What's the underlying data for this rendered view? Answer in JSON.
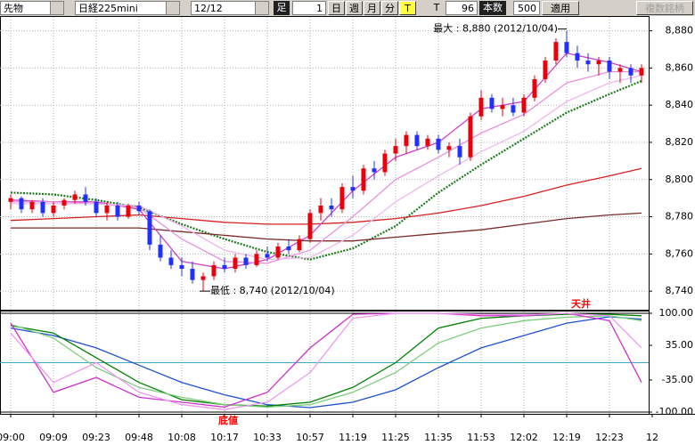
{
  "toolbar": {
    "market": "先物",
    "symbol": "日経225mini",
    "contract": "12/12",
    "bar_label": "足",
    "bar_size": "1",
    "buttons": [
      "日",
      "週",
      "月",
      "分",
      "T"
    ],
    "tick_label": "T",
    "count": "96",
    "count_label": "本数",
    "limit": "500",
    "apply": "適用",
    "multi": "複数銘柄"
  },
  "chart_data": [
    {
      "type": "candlestick",
      "xlim": [
        -1,
        59.67
      ],
      "xticks": [
        {
          "value": 0,
          "label": "09:00"
        },
        {
          "value": 4,
          "label": "09:09"
        },
        {
          "value": 8,
          "label": "09:23"
        },
        {
          "value": 12,
          "label": "09:48"
        },
        {
          "value": 16,
          "label": "10:08"
        },
        {
          "value": 20,
          "label": "10:17"
        },
        {
          "value": 24,
          "label": "10:33"
        },
        {
          "value": 28,
          "label": "10:57"
        },
        {
          "value": 32,
          "label": "11:19"
        },
        {
          "value": 36,
          "label": "11:25"
        },
        {
          "value": 40,
          "label": "11:35"
        },
        {
          "value": 44,
          "label": "11:53"
        },
        {
          "value": 48,
          "label": "12:02"
        },
        {
          "value": 52,
          "label": "12:19"
        },
        {
          "value": 56,
          "label": "12:23"
        },
        {
          "value": 60,
          "label": "12"
        }
      ],
      "ylim": [
        8730,
        8887
      ],
      "yticks": [
        {
          "value": 8880,
          "label": "8,880"
        },
        {
          "value": 8860,
          "label": "8,860"
        },
        {
          "value": 8840,
          "label": "8,840"
        },
        {
          "value": 8820,
          "label": "8,820"
        },
        {
          "value": 8800,
          "label": "8,800"
        },
        {
          "value": 8780,
          "label": "8,780"
        },
        {
          "value": 8760,
          "label": "8,760"
        },
        {
          "value": 8740,
          "label": "8,740"
        }
      ],
      "grid": true,
      "max_label": "最大 : 8,880 (2012/10/04)",
      "min_label": "最低 : 8,740 (2012/10/04)",
      "candles": {
        "up_color": "#e8000b",
        "down_color": "#2030ff",
        "x": [
          0,
          1,
          2,
          3,
          4,
          5,
          6,
          7,
          8,
          9,
          10,
          11,
          12,
          13,
          14,
          15,
          16,
          17,
          18,
          19,
          20,
          21,
          22,
          23,
          24,
          25,
          26,
          27,
          28,
          29,
          30,
          31,
          32,
          33,
          34,
          35,
          36,
          37,
          38,
          39,
          40,
          41,
          42,
          43,
          44,
          45,
          46,
          47,
          48,
          49,
          50,
          51,
          52,
          53,
          54,
          55,
          56,
          57,
          58,
          59
        ],
        "open": [
          8788,
          8790,
          8784,
          8788,
          8782,
          8786,
          8789,
          8792,
          8788,
          8782,
          8786,
          8780,
          8786,
          8783,
          8765,
          8758,
          8754,
          8752,
          8746,
          8748,
          8754,
          8752,
          8758,
          8754,
          8760,
          8758,
          8764,
          8762,
          8768,
          8782,
          8786,
          8784,
          8796,
          8794,
          8806,
          8804,
          8814,
          8818,
          8824,
          8818,
          8822,
          8816,
          8818,
          8812,
          8834,
          8844,
          8838,
          8840,
          8836,
          8844,
          8854,
          8864,
          8874,
          8868,
          8864,
          8862,
          8864,
          8858,
          8860,
          8856
        ],
        "high": [
          8792,
          8791,
          8789,
          8790,
          8788,
          8790,
          8794,
          8796,
          8790,
          8788,
          8788,
          8787,
          8788,
          8784,
          8770,
          8762,
          8758,
          8756,
          8750,
          8756,
          8758,
          8760,
          8760,
          8762,
          8764,
          8766,
          8768,
          8770,
          8784,
          8790,
          8790,
          8798,
          8802,
          8808,
          8810,
          8816,
          8822,
          8826,
          8826,
          8824,
          8824,
          8820,
          8822,
          8836,
          8848,
          8846,
          8844,
          8844,
          8846,
          8856,
          8866,
          8876,
          8880,
          8872,
          8868,
          8866,
          8866,
          8862,
          8862,
          8862
        ],
        "low": [
          8784,
          8782,
          8782,
          8780,
          8780,
          8784,
          8787,
          8786,
          8780,
          8778,
          8778,
          8779,
          8781,
          8762,
          8756,
          8752,
          8748,
          8744,
          8740,
          8746,
          8750,
          8750,
          8752,
          8753,
          8756,
          8757,
          8760,
          8761,
          8766,
          8778,
          8780,
          8782,
          8790,
          8792,
          8800,
          8802,
          8810,
          8814,
          8816,
          8816,
          8814,
          8812,
          8808,
          8810,
          8832,
          8836,
          8834,
          8834,
          8834,
          8842,
          8852,
          8862,
          8866,
          8860,
          8858,
          8856,
          8854,
          8852,
          8852,
          8852
        ],
        "close": [
          8790,
          8784,
          8788,
          8782,
          8786,
          8789,
          8792,
          8788,
          8782,
          8786,
          8780,
          8786,
          8783,
          8765,
          8758,
          8754,
          8752,
          8746,
          8748,
          8754,
          8752,
          8758,
          8754,
          8760,
          8758,
          8764,
          8762,
          8768,
          8782,
          8786,
          8784,
          8796,
          8794,
          8806,
          8804,
          8814,
          8818,
          8824,
          8818,
          8822,
          8816,
          8818,
          8812,
          8834,
          8844,
          8838,
          8840,
          8836,
          8844,
          8854,
          8864,
          8874,
          8868,
          8864,
          8862,
          8864,
          8858,
          8860,
          8856,
          8860
        ]
      },
      "series": [
        {
          "color": "#1c7a1c",
          "style": "dotted",
          "x": [
            0,
            4,
            8,
            12,
            16,
            20,
            24,
            28,
            32,
            36,
            40,
            44,
            48,
            52,
            56,
            59
          ],
          "values": [
            8793,
            8792,
            8789,
            8785,
            8776,
            8768,
            8761,
            8757,
            8763,
            8775,
            8793,
            8808,
            8822,
            8836,
            8846,
            8853
          ]
        },
        {
          "color": "#d42020",
          "style": "solid",
          "x": [
            0,
            4,
            8,
            12,
            16,
            20,
            24,
            28,
            32,
            36,
            40,
            44,
            48,
            52,
            56,
            59
          ],
          "values": [
            8778,
            8779,
            8780,
            8781,
            8779,
            8777,
            8776,
            8776,
            8777,
            8779,
            8782,
            8786,
            8791,
            8797,
            8802,
            8806
          ]
        },
        {
          "color": "#7a2a2a",
          "style": "solid",
          "x": [
            0,
            4,
            8,
            12,
            16,
            20,
            24,
            28,
            32,
            36,
            40,
            44,
            48,
            52,
            56,
            59
          ],
          "values": [
            8774,
            8774,
            8774,
            8774,
            8772,
            8770,
            8768,
            8767,
            8767,
            8769,
            8771,
            8773,
            8776,
            8779,
            8781,
            8782
          ]
        },
        {
          "color": "#d040c8",
          "style": "solid",
          "x": [
            0,
            4,
            8,
            12,
            16,
            20,
            24,
            28,
            32,
            36,
            40,
            44,
            48,
            52,
            56,
            59
          ],
          "values": [
            8789,
            8788,
            8788,
            8784,
            8756,
            8752,
            8757,
            8770,
            8794,
            8812,
            8820,
            8838,
            8842,
            8868,
            8863,
            8858
          ]
        },
        {
          "color": "#e890e0",
          "style": "solid",
          "x": [
            0,
            4,
            8,
            12,
            16,
            20,
            24,
            28,
            32,
            36,
            40,
            44,
            48,
            52,
            56,
            59
          ],
          "values": [
            8788,
            8788,
            8787,
            8785,
            8768,
            8756,
            8755,
            8762,
            8780,
            8800,
            8812,
            8825,
            8835,
            8852,
            8858,
            8858
          ]
        },
        {
          "color": "#f0b8ec",
          "style": "solid",
          "x": [
            0,
            4,
            8,
            12,
            16,
            20,
            24,
            28,
            32,
            36,
            40,
            44,
            48,
            52,
            56,
            59
          ],
          "values": [
            8787,
            8787,
            8787,
            8786,
            8775,
            8762,
            8757,
            8758,
            8770,
            8788,
            8802,
            8815,
            8826,
            8842,
            8852,
            8856
          ]
        }
      ]
    },
    {
      "type": "line",
      "ylim": [
        -100,
        100
      ],
      "yticks": [
        {
          "value": 100,
          "label": "100.00"
        },
        {
          "value": 35,
          "label": "35.00"
        },
        {
          "value": -35,
          "label": "-35.00"
        },
        {
          "value": -100,
          "label": "-100.00"
        }
      ],
      "hlines": [
        {
          "value": 0,
          "color": "#40a8c8"
        }
      ],
      "ceiling_label": "天井",
      "floor_label": "底値",
      "series": [
        {
          "color": "#1f4fd0",
          "x": [
            0,
            4,
            8,
            12,
            16,
            20,
            24,
            28,
            32,
            36,
            40,
            44,
            48,
            52,
            56,
            59
          ],
          "values": [
            70,
            55,
            30,
            -5,
            -40,
            -65,
            -85,
            -91,
            -80,
            -55,
            -10,
            30,
            55,
            80,
            93,
            88
          ]
        },
        {
          "color": "#008000",
          "x": [
            0,
            4,
            8,
            12,
            16,
            20,
            24,
            28,
            32,
            36,
            40,
            44,
            48,
            52,
            56,
            59
          ],
          "values": [
            75,
            60,
            10,
            -40,
            -75,
            -85,
            -88,
            -80,
            -50,
            0,
            70,
            90,
            95,
            98,
            98,
            95
          ]
        },
        {
          "color": "#7ccc7c",
          "x": [
            0,
            4,
            8,
            12,
            16,
            20,
            24,
            28,
            32,
            36,
            40,
            44,
            48,
            52,
            56,
            59
          ],
          "values": [
            78,
            50,
            -10,
            -50,
            -70,
            -85,
            -90,
            -85,
            -60,
            -20,
            40,
            70,
            85,
            92,
            95,
            85
          ]
        },
        {
          "color": "#cc33cc",
          "x": [
            0,
            4,
            8,
            12,
            16,
            20,
            24,
            28,
            32,
            36,
            40,
            44,
            48,
            52,
            56,
            59
          ],
          "values": [
            80,
            -60,
            -30,
            -70,
            -80,
            -90,
            -60,
            30,
            98,
            100,
            100,
            95,
            95,
            100,
            85,
            -40
          ]
        },
        {
          "color": "#ee99ee",
          "x": [
            0,
            4,
            8,
            12,
            16,
            20,
            24,
            28,
            32,
            36,
            40,
            44,
            48,
            52,
            56,
            59
          ],
          "values": [
            60,
            -40,
            0,
            -60,
            -85,
            -95,
            -80,
            -20,
            90,
            100,
            100,
            98,
            97,
            100,
            95,
            30
          ]
        }
      ]
    }
  ]
}
